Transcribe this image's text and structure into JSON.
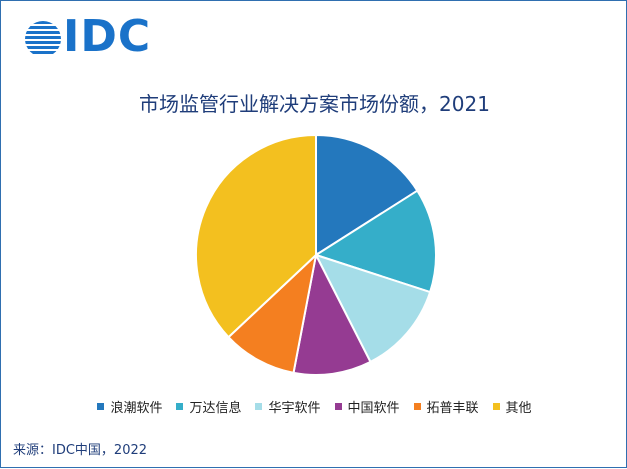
{
  "brand": {
    "logo_text": "IDC",
    "logo_color": "#1a72c9"
  },
  "chart_data": {
    "type": "pie",
    "title": "市场监管行业解决方案市场份额，2021",
    "series": [
      {
        "name": "浪潮软件",
        "value": 16.0,
        "color": "#2478bd"
      },
      {
        "name": "万达信息",
        "value": 14.0,
        "color": "#35aec9"
      },
      {
        "name": "华宇软件",
        "value": 12.5,
        "color": "#a5dde8"
      },
      {
        "name": "中国软件",
        "value": 10.5,
        "color": "#953b92"
      },
      {
        "name": "拓普丰联",
        "value": 10.0,
        "color": "#f47f20"
      },
      {
        "name": "其他",
        "value": 37.0,
        "color": "#f3c01f"
      }
    ],
    "start_angle_deg": 0,
    "direction": "clockwise",
    "legend_position": "bottom"
  },
  "source": "来源：IDC中国，2022"
}
